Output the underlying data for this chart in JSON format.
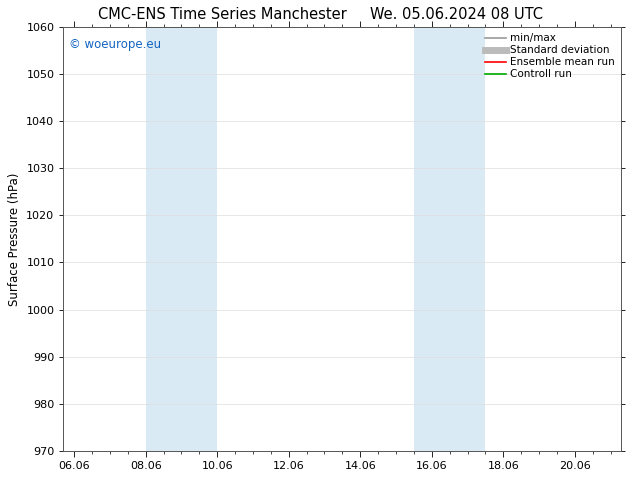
{
  "title": "CMC-ENS Time Series Manchester",
  "title2": "We. 05.06.2024 08 UTC",
  "ylabel": "Surface Pressure (hPa)",
  "ylim": [
    970,
    1060
  ],
  "yticks": [
    970,
    980,
    990,
    1000,
    1010,
    1020,
    1030,
    1040,
    1050,
    1060
  ],
  "x_tick_labels": [
    "06.06",
    "08.06",
    "10.06",
    "12.06",
    "14.06",
    "16.06",
    "18.06",
    "20.06"
  ],
  "x_tick_positions": [
    0,
    2,
    4,
    6,
    8,
    10,
    12,
    14
  ],
  "x_lim": [
    -0.3,
    15.3
  ],
  "shaded_bands": [
    {
      "x_start": 2.0,
      "x_end": 4.0,
      "color": "#daeaf5"
    },
    {
      "x_start": 9.5,
      "x_end": 11.5,
      "color": "#daeaf5"
    }
  ],
  "watermark": "© woeurope.eu",
  "watermark_color": "#1565c0",
  "legend_items": [
    {
      "label": "min/max",
      "color": "#999999",
      "lw": 1.2,
      "ls": "-"
    },
    {
      "label": "Standard deviation",
      "color": "#bbbbbb",
      "lw": 5,
      "ls": "-"
    },
    {
      "label": "Ensemble mean run",
      "color": "#ff0000",
      "lw": 1.2,
      "ls": "-"
    },
    {
      "label": "Controll run",
      "color": "#00aa00",
      "lw": 1.2,
      "ls": "-"
    }
  ],
  "bg_color": "#ffffff",
  "plot_bg_color": "#ffffff",
  "title_fontsize": 10.5,
  "ylabel_fontsize": 8.5,
  "tick_fontsize": 8,
  "legend_fontsize": 7.5,
  "watermark_fontsize": 8.5
}
